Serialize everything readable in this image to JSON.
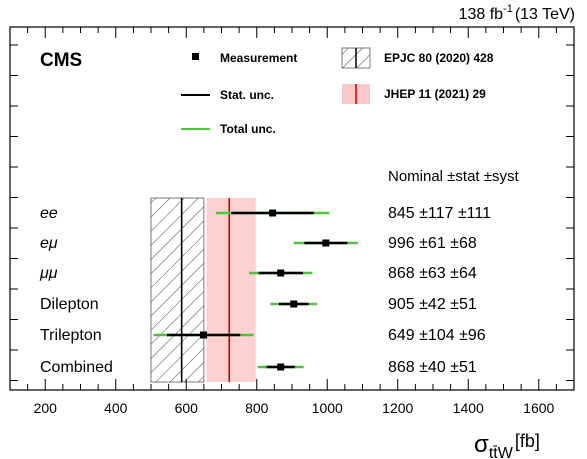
{
  "chart_data": {
    "type": "scatter",
    "lumi_label": "138 fb",
    "lumi_sup": "-1",
    "lumi_energy": "(13 TeV)",
    "experiment": "CMS",
    "xlabel_main": "σ",
    "xlabel_sub": "tt̄W",
    "xlabel_unit": "[fb]",
    "xlim": [
      100,
      1700
    ],
    "x_ticks": [
      200,
      400,
      600,
      800,
      1000,
      1200,
      1400,
      1600
    ],
    "x_tick_labels": [
      "200",
      "400",
      "600",
      "800",
      "1000",
      "1200",
      "1400",
      "1600"
    ],
    "legend": {
      "measurement": "Measurement",
      "stat": "Stat. unc.",
      "total": "Total unc.",
      "ref1": "EPJC 80 (2020) 428",
      "ref2": "JHEP 11 (2021) 29"
    },
    "column_header": "Nominal ±stat ±syst",
    "references": [
      {
        "label": "EPJC 80 (2020) 428",
        "value": 587,
        "low": 500,
        "high": 650,
        "style": "hatched"
      },
      {
        "label": "JHEP 11 (2021) 29",
        "value": 722,
        "low": 657,
        "high": 797,
        "style": "band"
      }
    ],
    "rows": [
      {
        "label": "ee",
        "italic": true,
        "value": 845,
        "stat": 117,
        "syst": 111,
        "stat_low": 728,
        "stat_high": 962,
        "tot_low": 684,
        "tot_high": 1006,
        "text": "845 ±117 ±111"
      },
      {
        "label": "eμ",
        "italic": true,
        "value": 996,
        "stat": 61,
        "syst": 68,
        "stat_low": 935,
        "stat_high": 1057,
        "tot_low": 905,
        "tot_high": 1087,
        "text": "996 ±61 ±68"
      },
      {
        "label": "μμ",
        "italic": true,
        "value": 868,
        "stat": 63,
        "syst": 64,
        "stat_low": 805,
        "stat_high": 931,
        "tot_low": 778,
        "tot_high": 958,
        "text": "868 ±63 ±64"
      },
      {
        "label": "Dilepton",
        "italic": false,
        "value": 905,
        "stat": 42,
        "syst": 51,
        "stat_low": 863,
        "stat_high": 947,
        "tot_low": 839,
        "tot_high": 971,
        "text": "905 ±42 ±51"
      },
      {
        "label": "Trilepton",
        "italic": false,
        "value": 649,
        "stat": 104,
        "syst": 96,
        "stat_low": 545,
        "stat_high": 753,
        "tot_low": 507,
        "tot_high": 791,
        "text": "649 ±104 ±96"
      },
      {
        "label": "Combined",
        "italic": false,
        "value": 868,
        "stat": 40,
        "syst": 51,
        "stat_low": 828,
        "stat_high": 908,
        "tot_low": 803,
        "tot_high": 933,
        "text": "868 ±40 ±51"
      }
    ],
    "colors": {
      "stat": "#000000",
      "total": "#4cc53a",
      "band_fill": "#fbc9c9",
      "band_line": "#cc0000",
      "hatch": "#555555"
    }
  }
}
